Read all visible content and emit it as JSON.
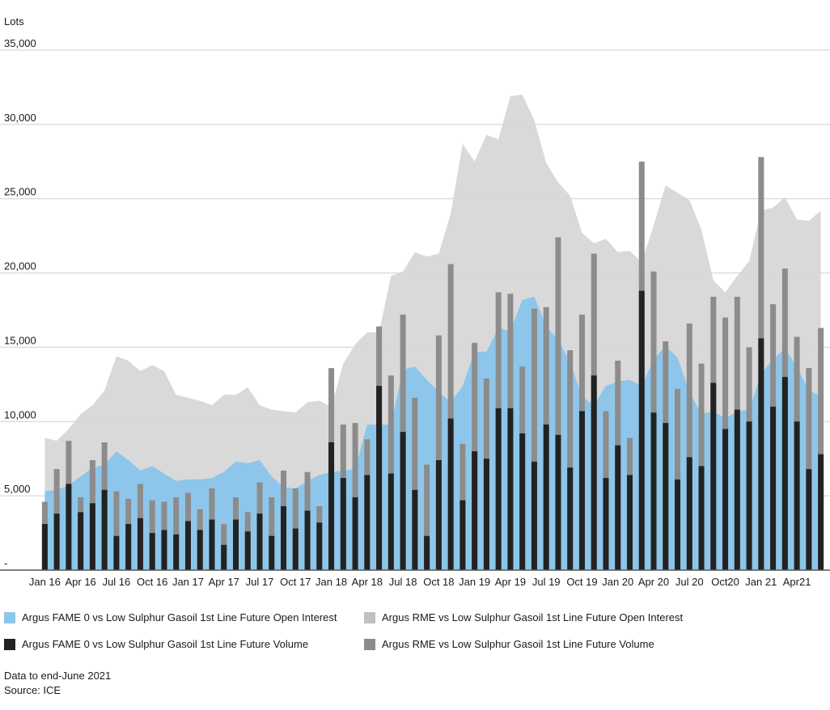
{
  "chart_data": {
    "type": "bar",
    "ylabel": "Lots",
    "ylim": [
      0,
      35000
    ],
    "yticks": [
      0,
      5000,
      10000,
      15000,
      20000,
      25000,
      30000,
      35000
    ],
    "ytick_labels": [
      "-",
      "5,000",
      "10,000",
      "15,000",
      "20,000",
      "25,000",
      "30,000",
      "35,000"
    ],
    "xtick_labels": [
      "Jan 16",
      "Apr 16",
      "Jul 16",
      "Oct 16",
      "Jan 17",
      "Apr 17",
      "Jul 17",
      "Oct 17",
      "Jan 18",
      "Apr 18",
      "Jul 18",
      "Oct 18",
      "Jan 19",
      "Apr 19",
      "Jul 19",
      "Oct 19",
      "Jan 20",
      "Apr 20",
      "Jul 20",
      "Oct20",
      "Jan 21",
      "Apr21"
    ],
    "categories": [
      "2016-01",
      "2016-02",
      "2016-03",
      "2016-04",
      "2016-05",
      "2016-06",
      "2016-07",
      "2016-08",
      "2016-09",
      "2016-10",
      "2016-11",
      "2016-12",
      "2017-01",
      "2017-02",
      "2017-03",
      "2017-04",
      "2017-05",
      "2017-06",
      "2017-07",
      "2017-08",
      "2017-09",
      "2017-10",
      "2017-11",
      "2017-12",
      "2018-01",
      "2018-02",
      "2018-03",
      "2018-04",
      "2018-05",
      "2018-06",
      "2018-07",
      "2018-08",
      "2018-09",
      "2018-10",
      "2018-11",
      "2018-12",
      "2019-01",
      "2019-02",
      "2019-03",
      "2019-04",
      "2019-05",
      "2019-06",
      "2019-07",
      "2019-08",
      "2019-09",
      "2019-10",
      "2019-11",
      "2019-12",
      "2020-01",
      "2020-02",
      "2020-03",
      "2020-04",
      "2020-05",
      "2020-06",
      "2020-07",
      "2020-08",
      "2020-09",
      "2020-10",
      "2020-11",
      "2020-12",
      "2021-01",
      "2021-02",
      "2021-03",
      "2021-04",
      "2021-05",
      "2021-06"
    ],
    "series": [
      {
        "name": "Argus FAME 0 vs Low Sulphur Gasoil 1st Line Future Open Interest",
        "kind": "area",
        "color": "#8dc6ea",
        "values": [
          5300,
          5400,
          5700,
          6300,
          6900,
          7100,
          8000,
          7400,
          6700,
          7000,
          6500,
          6000,
          6100,
          6100,
          6200,
          6600,
          7300,
          7200,
          7400,
          6300,
          5600,
          5500,
          6000,
          6400,
          6600,
          6700,
          6800,
          9800,
          9800,
          9800,
          13500,
          13700,
          12800,
          12000,
          11300,
          12400,
          14700,
          14700,
          16300,
          16100,
          18200,
          18400,
          16400,
          15500,
          14000,
          11700,
          11100,
          12400,
          12700,
          12800,
          12400,
          14200,
          15100,
          14300,
          12000,
          10500,
          10700,
          10200,
          10700,
          10800,
          13200,
          14200,
          14900,
          13700,
          12100,
          11700
        ]
      },
      {
        "name": "Argus RME vs Low Sulphur Gasoil 1st Line Future Open Interest",
        "kind": "area",
        "color": "#d7d7d7",
        "values": [
          8900,
          8700,
          9500,
          10500,
          11100,
          12100,
          14400,
          14100,
          13400,
          13800,
          13400,
          11800,
          11600,
          11400,
          11100,
          11800,
          11800,
          12300,
          11100,
          10800,
          10700,
          10600,
          11300,
          11400,
          11000,
          13900,
          15200,
          16000,
          16000,
          19800,
          20100,
          21400,
          21100,
          21300,
          24000,
          28700,
          27500,
          29300,
          29000,
          31900,
          32000,
          30300,
          27400,
          26100,
          25200,
          22700,
          22000,
          22300,
          21400,
          21500,
          20700,
          23200,
          25900,
          25400,
          24900,
          22900,
          19500,
          18700,
          19800,
          20800,
          24200,
          24400,
          25100,
          23600,
          23500,
          24200
        ]
      },
      {
        "name": "Argus RME vs Low Sulphur Gasoil 1st Line Future Volume",
        "kind": "bar",
        "color": "#8c8c8c",
        "values": [
          4600,
          6800,
          8700,
          4900,
          7400,
          8600,
          5300,
          4800,
          5800,
          4700,
          4600,
          4900,
          5200,
          4100,
          5500,
          3100,
          4900,
          3900,
          5900,
          4900,
          6700,
          5500,
          6600,
          4300,
          13600,
          9800,
          9900,
          8800,
          16400,
          13100,
          17200,
          11600,
          7100,
          15800,
          20600,
          8500,
          15300,
          12900,
          18700,
          18600,
          13700,
          17600,
          17700,
          22400,
          14800,
          17200,
          21300,
          10700,
          14100,
          8900,
          27500,
          20100,
          15400,
          12200,
          16600,
          13900,
          18400,
          17000,
          18400,
          15000,
          27800,
          17900,
          20300,
          15700,
          13600,
          16300
        ]
      },
      {
        "name": "Argus FAME 0 vs Low Sulphur Gasoil 1st Line Future Volume",
        "kind": "bar",
        "color": "#222222",
        "values": [
          3100,
          3800,
          5800,
          3900,
          4500,
          5400,
          2300,
          3100,
          3500,
          2500,
          2700,
          2400,
          3300,
          2700,
          3400,
          1700,
          3400,
          2600,
          3800,
          2300,
          4300,
          2800,
          4000,
          3200,
          8600,
          6200,
          4900,
          6400,
          12400,
          6500,
          9300,
          5400,
          2300,
          7400,
          10200,
          4700,
          8000,
          7500,
          10900,
          10900,
          9200,
          7300,
          9800,
          9100,
          6900,
          10700,
          13100,
          6200,
          8400,
          6400,
          18800,
          10600,
          9900,
          6100,
          7600,
          7000,
          12600,
          9500,
          10800,
          10000,
          15600,
          11000,
          13000,
          10000,
          6800,
          7800
        ]
      }
    ],
    "legend": [
      {
        "label": "Argus FAME 0 vs Low Sulphur Gasoil 1st Line Future Open Interest",
        "color": "#8dc6ea"
      },
      {
        "label": "Argus RME vs Low Sulphur Gasoil 1st Line Future Open Interest",
        "color": "#c0c0c0"
      },
      {
        "label": "Argus FAME 0 vs Low Sulphur Gasoil 1st Line Future Volume",
        "color": "#222222"
      },
      {
        "label": "Argus RME vs Low Sulphur Gasoil 1st Line Future Volume",
        "color": "#8c8c8c"
      }
    ],
    "grid": true,
    "legend_position": "bottom"
  },
  "notes": {
    "line1": "Data to end-June 2021",
    "line2": "Source: ICE"
  }
}
